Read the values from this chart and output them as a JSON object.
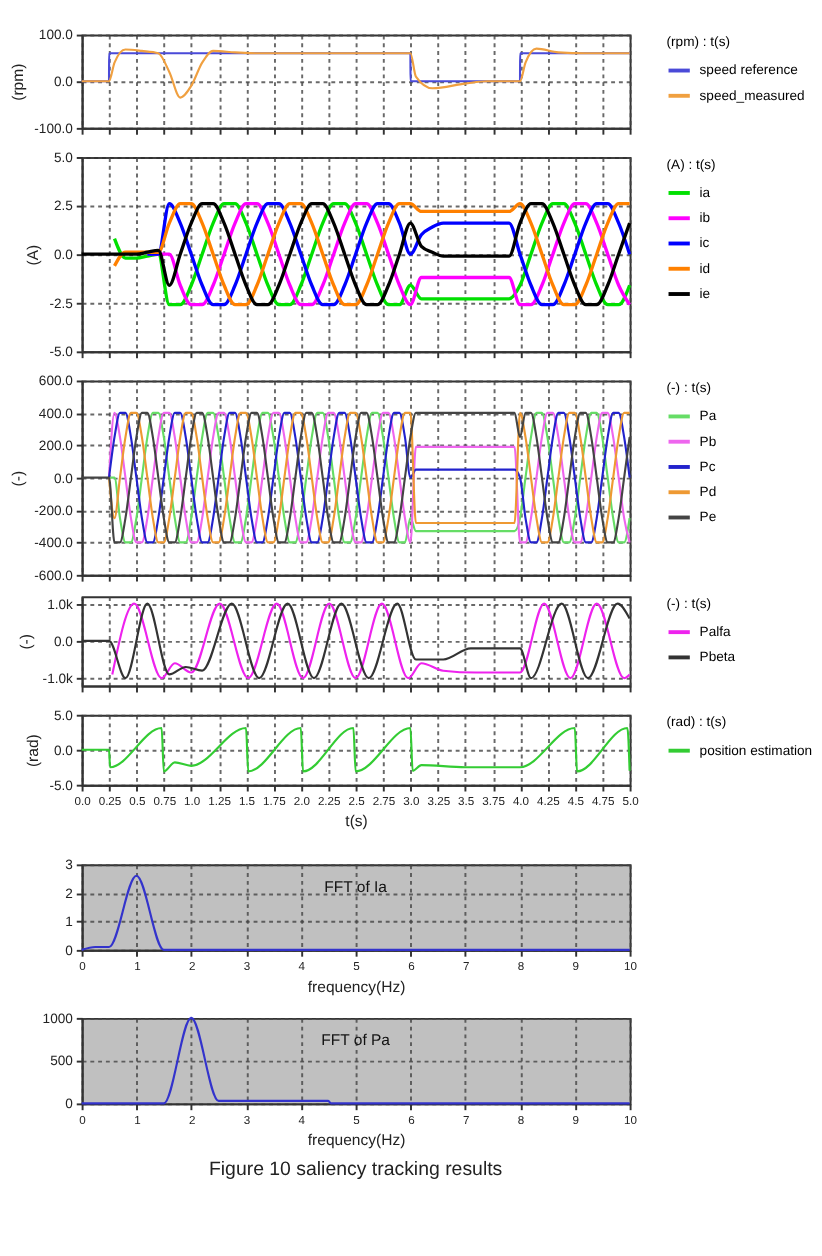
{
  "chart_data": [
    {
      "type": "line",
      "ylabel": "(rpm)",
      "legend_title": "(rpm) : t(s)",
      "legend": "right",
      "grid": true,
      "tick_labels": "y",
      "xlim": [
        0,
        5
      ],
      "ylim": [
        -100,
        100
      ],
      "xticks": [
        0,
        0.25,
        0.5,
        0.75,
        1,
        1.25,
        1.5,
        1.75,
        2,
        2.25,
        2.5,
        2.75,
        3,
        3.25,
        3.5,
        3.75,
        4,
        4.25,
        4.5,
        4.75,
        5
      ],
      "yticks": [
        {
          "value": -100,
          "label": "-100.0"
        },
        {
          "value": 0,
          "label": "0.0"
        },
        {
          "value": 100,
          "label": "100.0"
        }
      ],
      "series": [
        {
          "name": "speed reference",
          "color": "#4a4ad8",
          "x": [
            0,
            0.25,
            0.251,
            3.0,
            3.001,
            4.0,
            4.001,
            5.0
          ],
          "values": [
            0,
            0,
            60,
            60,
            0,
            0,
            60,
            60
          ]
        },
        {
          "name": "speed_measured",
          "color": "#f0a040",
          "x": [
            0,
            0.25,
            0.3,
            0.4,
            0.55,
            0.7,
            0.8,
            0.9,
            1.0,
            1.1,
            1.2,
            1.4,
            1.6,
            3.0,
            3.05,
            3.2,
            3.5,
            3.7,
            4.0,
            4.05,
            4.15,
            4.35,
            4.6,
            5.0
          ],
          "values": [
            0,
            0,
            40,
            68,
            65,
            60,
            20,
            -35,
            -10,
            40,
            65,
            62,
            60,
            60,
            10,
            -15,
            -5,
            0,
            0,
            40,
            70,
            62,
            60,
            60
          ]
        }
      ]
    },
    {
      "type": "line",
      "ylabel": "(A)",
      "legend_title": "(A) : t(s)",
      "legend": "right",
      "grid": true,
      "tick_labels": "y",
      "xlim": [
        0,
        5
      ],
      "ylim": [
        -5,
        5
      ],
      "xticks": [
        0,
        0.25,
        0.5,
        0.75,
        1,
        1.25,
        1.5,
        1.75,
        2,
        2.25,
        2.5,
        2.75,
        3,
        3.25,
        3.5,
        3.75,
        4,
        4.25,
        4.5,
        4.75,
        5
      ],
      "yticks": [
        {
          "value": -5,
          "label": "-5.0"
        },
        {
          "value": -2.5,
          "label": "-2.5"
        },
        {
          "value": 0,
          "label": "0.0"
        },
        {
          "value": 2.5,
          "label": "2.5"
        },
        {
          "value": 5,
          "label": "5.0"
        }
      ],
      "x": [
        0,
        0.1,
        0.2,
        0.3,
        0.4,
        0.5,
        0.6,
        0.7,
        0.8,
        0.9,
        1.0,
        1.1,
        1.2,
        1.3,
        1.4,
        1.5,
        1.6,
        1.7,
        1.8,
        1.9,
        2.0,
        2.1,
        2.2,
        2.3,
        2.4,
        2.5,
        2.6,
        2.7,
        2.8,
        2.9,
        3.0,
        3.1,
        3.2,
        3.3,
        3.4,
        3.5,
        3.6,
        3.7,
        3.8,
        3.9,
        4.0,
        4.1,
        4.2,
        4.3,
        4.4,
        4.5,
        4.6,
        4.7,
        4.8,
        4.9,
        5.0
      ],
      "series": [
        {
          "name": "ia",
          "color": "#00e000",
          "values": [
            null,
            null,
            null,
            0.8,
            -0.2,
            -0.2,
            -0.1,
            0,
            -2.6,
            -2.6,
            -1.6,
            0,
            1.6,
            2.6,
            2.6,
            1.6,
            0,
            -1.6,
            -2.6,
            -2.6,
            -1.6,
            0,
            1.6,
            2.6,
            2.6,
            1.6,
            0,
            -1.6,
            -2.6,
            -2.6,
            -1.6,
            -2.3,
            -2.3,
            -2.3,
            -2.3,
            -2.3,
            -2.3,
            -2.3,
            -2.3,
            -2.3,
            -1.6,
            0,
            1.6,
            2.6,
            2.6,
            1.6,
            0,
            -1.6,
            -2.6,
            -2.6,
            -1.6
          ]
        },
        {
          "name": "ib",
          "color": "#ff00ff",
          "values": [
            null,
            null,
            null,
            null,
            null,
            null,
            0,
            0,
            0,
            -1.6,
            -2.6,
            -2.6,
            -1.6,
            0,
            1.6,
            2.6,
            2.6,
            1.6,
            0,
            -1.6,
            -2.6,
            -2.6,
            -1.6,
            0,
            1.6,
            2.6,
            2.6,
            1.6,
            0,
            -1.6,
            -2.6,
            -1.2,
            -1.2,
            -1.2,
            -1.2,
            -1.2,
            -1.2,
            -1.2,
            -1.2,
            -1.2,
            -2.6,
            -2.6,
            -1.6,
            0,
            1.6,
            2.6,
            2.6,
            1.6,
            0,
            -1.6,
            -2.6
          ]
        },
        {
          "name": "ic",
          "color": "#0000ff",
          "values": [
            null,
            null,
            null,
            null,
            null,
            null,
            0,
            0,
            2.6,
            1.6,
            0,
            -1.6,
            -2.6,
            -2.6,
            -1.6,
            0,
            1.6,
            2.6,
            2.6,
            1.6,
            0,
            -1.6,
            -2.6,
            -2.6,
            -1.6,
            0,
            1.6,
            2.6,
            2.6,
            1.6,
            0,
            1.0,
            1.4,
            1.6,
            1.6,
            1.6,
            1.6,
            1.6,
            1.6,
            1.6,
            0,
            -1.6,
            -2.6,
            -2.6,
            -1.6,
            0,
            1.6,
            2.6,
            2.6,
            1.6,
            0
          ]
        },
        {
          "name": "id",
          "color": "#ff8000",
          "values": [
            null,
            null,
            null,
            -0.6,
            0.1,
            0.1,
            0.1,
            0.1,
            1.6,
            2.6,
            2.6,
            1.6,
            0,
            -1.6,
            -2.6,
            -2.6,
            -1.6,
            0,
            1.6,
            2.6,
            2.6,
            1.6,
            0,
            -1.6,
            -2.6,
            -2.6,
            -1.6,
            0,
            1.6,
            2.6,
            2.6,
            2.2,
            2.2,
            2.2,
            2.2,
            2.2,
            2.2,
            2.2,
            2.2,
            2.2,
            2.6,
            1.6,
            0,
            -1.6,
            -2.6,
            -2.6,
            -1.6,
            0,
            1.6,
            2.6,
            2.6
          ]
        },
        {
          "name": "ie",
          "color": "#000000",
          "values": [
            0,
            0,
            0,
            0,
            0,
            0,
            0.1,
            0.2,
            -1.6,
            0,
            1.6,
            2.6,
            2.6,
            1.6,
            0,
            -1.6,
            -2.6,
            -2.6,
            -1.6,
            0,
            1.6,
            2.6,
            2.6,
            1.6,
            0,
            -1.6,
            -2.6,
            -2.6,
            -1.6,
            0,
            1.6,
            0.4,
            0.1,
            -0.1,
            -0.1,
            -0.1,
            -0.1,
            -0.1,
            -0.1,
            -0.1,
            1.6,
            2.6,
            2.6,
            1.6,
            0,
            -1.6,
            -2.6,
            -2.6,
            -1.6,
            0,
            1.6
          ]
        }
      ]
    },
    {
      "type": "line",
      "ylabel": "(-)",
      "legend_title": "(-) : t(s)",
      "legend": "right",
      "grid": true,
      "tick_labels": "y",
      "xlim": [
        0,
        5
      ],
      "ylim": [
        -600,
        600
      ],
      "xticks": [
        0,
        0.25,
        0.5,
        0.75,
        1,
        1.25,
        1.5,
        1.75,
        2,
        2.25,
        2.5,
        2.75,
        3,
        3.25,
        3.5,
        3.75,
        4,
        4.25,
        4.5,
        4.75,
        5
      ],
      "yticks": [
        {
          "value": -600,
          "label": "-600.0"
        },
        {
          "value": -400,
          "label": "-400.0"
        },
        {
          "value": -200,
          "label": "-200.0"
        },
        {
          "value": 0,
          "label": "0.0"
        },
        {
          "value": 200,
          "label": "200.0"
        },
        {
          "value": 400,
          "label": "400.0"
        },
        {
          "value": 600,
          "label": "600.0"
        }
      ],
      "x": [
        0,
        0.05,
        0.1,
        0.15,
        0.2,
        0.25,
        0.3,
        0.35,
        0.4,
        0.45,
        0.5,
        0.55,
        0.6,
        0.65,
        0.7,
        0.75,
        0.8,
        0.85,
        0.9,
        0.95,
        1.0,
        1.05,
        1.1,
        1.15,
        1.2,
        1.25,
        1.3,
        1.35,
        1.4,
        1.45,
        1.5,
        1.55,
        1.6,
        1.65,
        1.7,
        1.75,
        1.8,
        1.85,
        1.9,
        1.95,
        2.0,
        2.05,
        2.1,
        2.15,
        2.2,
        2.25,
        2.3,
        2.35,
        2.4,
        2.45,
        2.5,
        2.55,
        2.6,
        2.65,
        2.7,
        2.75,
        2.8,
        2.85,
        2.9,
        2.95,
        3.0,
        3.05,
        3.1,
        3.15,
        3.2,
        3.25,
        3.3,
        3.35,
        3.4,
        3.45,
        3.5,
        3.55,
        3.6,
        3.65,
        3.7,
        3.75,
        3.8,
        3.85,
        3.9,
        3.95,
        4.0,
        4.05,
        4.1,
        4.15,
        4.2,
        4.25,
        4.3,
        4.35,
        4.4,
        4.45,
        4.5,
        4.55,
        4.6,
        4.65,
        4.7,
        4.75,
        4.8,
        4.85,
        4.9,
        4.95,
        5.0
      ],
      "series": [
        {
          "name": "Pa",
          "color": "#66dd66",
          "values": [
            null,
            null,
            null,
            null,
            null,
            0,
            0,
            -250,
            -400,
            -400,
            -250,
            0,
            250,
            400,
            400,
            250,
            0,
            -250,
            -400,
            -400,
            -250,
            0,
            250,
            400,
            400,
            250,
            0,
            -250,
            -400,
            -400,
            -250,
            0,
            250,
            400,
            400,
            250,
            0,
            -250,
            -400,
            -400,
            -250,
            0,
            250,
            400,
            400,
            250,
            0,
            -250,
            -400,
            -400,
            -250,
            0,
            250,
            400,
            400,
            250,
            0,
            -250,
            -400,
            -400,
            -250,
            -330,
            -330,
            -330,
            -330,
            -330,
            -330,
            -330,
            -330,
            -330,
            -330,
            -330,
            -330,
            -330,
            -330,
            -330,
            -330,
            -330,
            -330,
            -330,
            -250,
            0,
            250,
            400,
            400,
            250,
            0,
            -250,
            -400,
            -400,
            -250,
            0,
            250,
            400,
            400,
            250,
            0,
            -250,
            -400,
            -400,
            -250
          ]
        },
        {
          "name": "Pb",
          "color": "#ee66ee",
          "values": [
            null,
            null,
            null,
            null,
            null,
            0,
            400,
            250,
            0,
            -250,
            -400,
            -400,
            -250,
            0,
            250,
            400,
            400,
            250,
            0,
            -250,
            -400,
            -400,
            -250,
            0,
            250,
            400,
            400,
            250,
            0,
            -250,
            -400,
            -400,
            -250,
            0,
            250,
            400,
            400,
            250,
            0,
            -250,
            -400,
            -400,
            -250,
            0,
            250,
            400,
            400,
            250,
            0,
            -250,
            -400,
            -400,
            -250,
            0,
            250,
            400,
            400,
            250,
            0,
            -250,
            -400,
            190,
            190,
            190,
            190,
            190,
            190,
            190,
            190,
            190,
            190,
            190,
            190,
            190,
            190,
            190,
            190,
            190,
            190,
            190,
            -400,
            -400,
            -250,
            0,
            250,
            400,
            400,
            250,
            0,
            -250,
            -400,
            -400,
            -250,
            0,
            250,
            400,
            400,
            250,
            0,
            -250,
            -400
          ]
        },
        {
          "name": "Pc",
          "color": "#2222cc",
          "values": [
            null,
            null,
            null,
            null,
            null,
            0,
            250,
            400,
            400,
            250,
            0,
            -250,
            -400,
            -400,
            -250,
            0,
            250,
            400,
            400,
            250,
            0,
            -250,
            -400,
            -400,
            -250,
            0,
            250,
            400,
            400,
            250,
            0,
            -250,
            -400,
            -400,
            -250,
            0,
            250,
            400,
            400,
            250,
            0,
            -250,
            -400,
            -400,
            -250,
            0,
            250,
            400,
            400,
            250,
            0,
            -250,
            -400,
            -400,
            -250,
            0,
            250,
            400,
            400,
            250,
            0,
            50,
            50,
            50,
            50,
            50,
            50,
            50,
            50,
            50,
            50,
            50,
            50,
            50,
            50,
            50,
            50,
            50,
            50,
            50,
            0,
            -250,
            -400,
            -400,
            -250,
            0,
            250,
            400,
            400,
            250,
            0,
            -250,
            -400,
            -400,
            -250,
            0,
            250,
            400,
            400,
            250,
            0
          ]
        },
        {
          "name": "Pd",
          "color": "#ee9933",
          "values": [
            null,
            null,
            null,
            null,
            null,
            0,
            -250,
            0,
            250,
            400,
            400,
            250,
            0,
            -250,
            -400,
            -400,
            -250,
            0,
            250,
            400,
            400,
            250,
            0,
            -250,
            -400,
            -400,
            -250,
            0,
            250,
            400,
            400,
            250,
            0,
            -250,
            -400,
            -400,
            -250,
            0,
            250,
            400,
            400,
            250,
            0,
            -250,
            -400,
            -400,
            -250,
            0,
            250,
            400,
            400,
            250,
            0,
            -250,
            -400,
            -400,
            -250,
            0,
            250,
            400,
            400,
            -280,
            -280,
            -280,
            -280,
            -280,
            -280,
            -280,
            -280,
            -280,
            -280,
            -280,
            -280,
            -280,
            -280,
            -280,
            -280,
            -280,
            -280,
            -280,
            400,
            250,
            0,
            -250,
            -400,
            -400,
            -250,
            0,
            250,
            400,
            400,
            250,
            0,
            -250,
            -400,
            -400,
            -250,
            0,
            250,
            400,
            400
          ]
        },
        {
          "name": "Pe",
          "color": "#444444",
          "values": [
            0,
            0,
            0,
            0,
            0,
            0,
            -400,
            -400,
            -250,
            0,
            250,
            400,
            400,
            250,
            0,
            -250,
            -400,
            -400,
            -250,
            0,
            250,
            400,
            400,
            250,
            0,
            -250,
            -400,
            -400,
            -250,
            0,
            250,
            400,
            400,
            250,
            0,
            -250,
            -400,
            -400,
            -250,
            0,
            250,
            400,
            400,
            250,
            0,
            -250,
            -400,
            -400,
            -250,
            0,
            250,
            400,
            400,
            250,
            0,
            -250,
            -400,
            -400,
            -250,
            0,
            250,
            400,
            400,
            400,
            400,
            400,
            400,
            400,
            400,
            400,
            400,
            400,
            400,
            400,
            400,
            400,
            400,
            400,
            400,
            400,
            250,
            400,
            400,
            250,
            0,
            -250,
            -400,
            -400,
            -250,
            0,
            250,
            400,
            400,
            250,
            0,
            -250,
            -400,
            -400,
            -250,
            0,
            250
          ]
        }
      ]
    },
    {
      "type": "line",
      "ylabel": "(-)",
      "legend_title": "(-) : t(s)",
      "legend": "right",
      "grid": true,
      "tick_labels": "y",
      "xlim": [
        0,
        5
      ],
      "ylim": [
        -1200,
        1200
      ],
      "xticks": [
        0,
        0.25,
        0.5,
        0.75,
        1,
        1.25,
        1.5,
        1.75,
        2,
        2.25,
        2.5,
        2.75,
        3,
        3.25,
        3.5,
        3.75,
        4,
        4.25,
        4.5,
        4.75,
        5
      ],
      "yticks": [
        {
          "value": -1000,
          "label": "-1.0k"
        },
        {
          "value": 0,
          "label": "0.0"
        },
        {
          "value": 1000,
          "label": "1.0k"
        }
      ],
      "series": [
        {
          "name": "Palfa",
          "color": "#ee22ee",
          "x": [
            0.28,
            0.48,
            0.73,
            0.85,
            1.0,
            1.26,
            1.52,
            1.78,
            2.02,
            2.26,
            2.5,
            2.74,
            2.98,
            3.1,
            3.3,
            3.6,
            4.0,
            4.22,
            4.46,
            4.7,
            4.95,
            5.0
          ],
          "values": [
            -900,
            1000,
            -1000,
            -600,
            -850,
            1000,
            -1000,
            1000,
            -1000,
            1000,
            -1000,
            1000,
            -1000,
            -600,
            -800,
            -850,
            -850,
            1000,
            -1000,
            1000,
            -1000,
            -900
          ]
        },
        {
          "name": "Pbeta",
          "color": "#333333",
          "x": [
            0,
            0.25,
            0.4,
            0.6,
            0.8,
            0.95,
            1.1,
            1.37,
            1.62,
            1.88,
            2.12,
            2.37,
            2.62,
            2.88,
            3.05,
            3.3,
            3.55,
            4.0,
            4.1,
            4.38,
            4.62,
            4.89,
            5.0
          ],
          "values": [
            0,
            0,
            -1000,
            1000,
            -900,
            -700,
            -800,
            1000,
            -1000,
            1000,
            -1000,
            1000,
            -1000,
            1000,
            -500,
            -500,
            -200,
            -200,
            -1000,
            1000,
            -1000,
            1000,
            600
          ]
        }
      ]
    },
    {
      "type": "line",
      "ylabel": "(rad)",
      "xlabel": "t(s)",
      "legend_title": "(rad) : t(s)",
      "legend": "right",
      "grid": true,
      "xlim": [
        0,
        5
      ],
      "ylim": [
        -5,
        5
      ],
      "xticks": [
        {
          "value": 0,
          "label": "0.0"
        },
        {
          "value": 0.25,
          "label": "0.25"
        },
        {
          "value": 0.5,
          "label": "0.5"
        },
        {
          "value": 0.75,
          "label": "0.75"
        },
        {
          "value": 1,
          "label": "1.0"
        },
        {
          "value": 1.25,
          "label": "1.25"
        },
        {
          "value": 1.5,
          "label": "1.5"
        },
        {
          "value": 1.75,
          "label": "1.75"
        },
        {
          "value": 2,
          "label": "2.0"
        },
        {
          "value": 2.25,
          "label": "2.25"
        },
        {
          "value": 2.5,
          "label": "2.5"
        },
        {
          "value": 2.75,
          "label": "2.75"
        },
        {
          "value": 3,
          "label": "3.0"
        },
        {
          "value": 3.25,
          "label": "3.25"
        },
        {
          "value": 3.5,
          "label": "3.5"
        },
        {
          "value": 3.75,
          "label": "3.75"
        },
        {
          "value": 4,
          "label": "4.0"
        },
        {
          "value": 4.25,
          "label": "4.25"
        },
        {
          "value": 4.5,
          "label": "4.5"
        },
        {
          "value": 4.75,
          "label": "4.75"
        },
        {
          "value": 5,
          "label": "5.0"
        }
      ],
      "yticks": [
        {
          "value": -5,
          "label": "-5.0"
        },
        {
          "value": 0,
          "label": "0.0"
        },
        {
          "value": 5,
          "label": "5.0"
        }
      ],
      "series": [
        {
          "name": "position estimation",
          "color": "#33cc33",
          "x": [
            0,
            0.25,
            0.26,
            0.73,
            0.75,
            0.85,
            1.0,
            1.5,
            1.52,
            2.0,
            2.02,
            2.48,
            2.5,
            3.0,
            3.02,
            3.1,
            3.5,
            4.0,
            4.5,
            4.52,
            4.98,
            5.0
          ],
          "values": [
            0,
            0,
            -2.5,
            3.1,
            -3.1,
            -1.8,
            -2.3,
            3.1,
            -3.1,
            3.1,
            -3.1,
            3.1,
            -3.1,
            3.1,
            -3.0,
            -2.2,
            -2.5,
            -2.5,
            3.1,
            -3.1,
            3.1,
            -3.0
          ]
        }
      ]
    },
    {
      "type": "line",
      "title": "FFT of Ia",
      "xlabel": "frequency(Hz)",
      "grid": true,
      "xlim": [
        0,
        10
      ],
      "ylim": [
        0,
        3
      ],
      "xticks": [
        0,
        1,
        2,
        3,
        4,
        5,
        6,
        7,
        8,
        9,
        10
      ],
      "yticks": [
        0,
        1,
        2,
        3
      ],
      "series": [
        {
          "color": "#3333cc",
          "x": [
            0,
            0.25,
            0.5,
            1.0,
            1.5,
            2.0,
            10
          ],
          "values": [
            0,
            0.1,
            0.1,
            2.6,
            0,
            0,
            0
          ]
        }
      ]
    },
    {
      "type": "line",
      "title": "FFT of Pa",
      "xlabel": "frequency(Hz)",
      "grid": true,
      "xlim": [
        0,
        10
      ],
      "ylim": [
        0,
        1000
      ],
      "xticks": [
        0,
        1,
        2,
        3,
        4,
        5,
        6,
        7,
        8,
        9,
        10
      ],
      "yticks": [
        0,
        500,
        {
          "value": 1000,
          "label": "1000"
        }
      ],
      "annotations": [
        "Figure 10 saliency tracking results"
      ],
      "series": [
        {
          "color": "#3333cc",
          "x": [
            0,
            1.5,
            2.0,
            2.5,
            4.5,
            4.55,
            10
          ],
          "values": [
            0,
            0,
            1000,
            30,
            30,
            0,
            0
          ]
        }
      ]
    }
  ]
}
